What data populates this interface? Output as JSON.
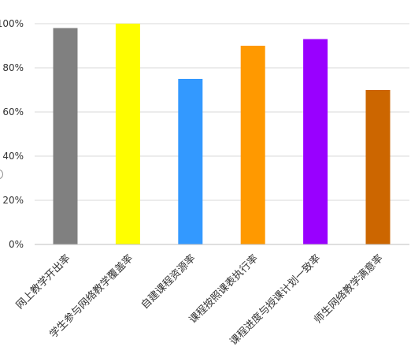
{
  "chart_data": {
    "type": "bar",
    "title": "",
    "xlabel": "",
    "ylabel": "",
    "ylim": [
      0,
      1
    ],
    "yticks": [
      0,
      0.2,
      0.4,
      0.6,
      0.8,
      1.0
    ],
    "ytick_labels": [
      "0%",
      "20%",
      "40%",
      "60%",
      "80%",
      "100%"
    ],
    "grid": true,
    "legend": "none",
    "categories": [
      "网上教学开出率",
      "学生参与网络教学覆盖率",
      "自建课程资源率",
      "课程按照课表执行率",
      "课程进度与授课计划一致率",
      "师生网络教学满意率"
    ],
    "values": [
      0.98,
      1.0,
      0.75,
      0.9,
      0.93,
      0.7
    ],
    "colors": [
      "#808080",
      "#ffff00",
      "#3399ff",
      "#ff9900",
      "#9900ff",
      "#cc6600"
    ]
  }
}
